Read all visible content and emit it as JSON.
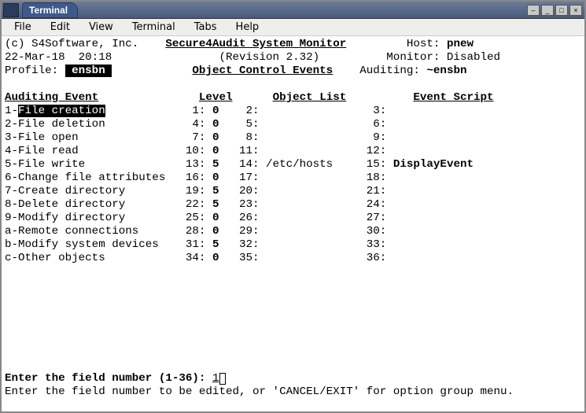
{
  "window": {
    "title": "Terminal",
    "controls": {
      "min": "_",
      "max": "□",
      "close": "×",
      "shade": "–"
    }
  },
  "menubar": [
    "File",
    "Edit",
    "View",
    "Terminal",
    "Tabs",
    "Help"
  ],
  "header": {
    "copyright": "(c) S4Software, Inc.",
    "systemTitle": "Secure4Audit System Monitor",
    "hostLabel": "Host:",
    "hostValue": "pnew",
    "date": "22-Mar-18  20:18",
    "revision": "(Revision 2.32)",
    "monitorLabel": "Monitor:",
    "monitorValue": "Disabled",
    "profileLabel": "Profile:",
    "profileValue": "ensbn",
    "sectionTitle": "Object Control Events",
    "auditingLabel": "Auditing:",
    "auditingValue": "~ensbn"
  },
  "tableHeaders": {
    "event": "Auditing Event",
    "level": "Level",
    "objectList": "Object List",
    "eventScript": "Event Script"
  },
  "events": [
    {
      "key": "1",
      "name": "File creation",
      "l": "1",
      "lv": "0",
      "o": "2",
      "ov": "",
      "s": "3",
      "sv": "",
      "sel": true
    },
    {
      "key": "2",
      "name": "File deletion",
      "l": "4",
      "lv": "0",
      "o": "5",
      "ov": "",
      "s": "6",
      "sv": ""
    },
    {
      "key": "3",
      "name": "File open",
      "l": "7",
      "lv": "0",
      "o": "8",
      "ov": "",
      "s": "9",
      "sv": ""
    },
    {
      "key": "4",
      "name": "File read",
      "l": "10",
      "lv": "0",
      "o": "11",
      "ov": "",
      "s": "12",
      "sv": ""
    },
    {
      "key": "5",
      "name": "File write",
      "l": "13",
      "lv": "5",
      "o": "14",
      "ov": "/etc/hosts",
      "s": "15",
      "sv": "DisplayEvent"
    },
    {
      "key": "6",
      "name": "Change file attributes",
      "l": "16",
      "lv": "0",
      "o": "17",
      "ov": "",
      "s": "18",
      "sv": ""
    },
    {
      "key": "7",
      "name": "Create directory",
      "l": "19",
      "lv": "5",
      "o": "20",
      "ov": "",
      "s": "21",
      "sv": ""
    },
    {
      "key": "8",
      "name": "Delete directory",
      "l": "22",
      "lv": "5",
      "o": "23",
      "ov": "",
      "s": "24",
      "sv": ""
    },
    {
      "key": "9",
      "name": "Modify directory",
      "l": "25",
      "lv": "0",
      "o": "26",
      "ov": "",
      "s": "27",
      "sv": ""
    },
    {
      "key": "a",
      "name": "Remote connections",
      "l": "28",
      "lv": "0",
      "o": "29",
      "ov": "",
      "s": "30",
      "sv": ""
    },
    {
      "key": "b",
      "name": "Modify system devices",
      "l": "31",
      "lv": "5",
      "o": "32",
      "ov": "",
      "s": "33",
      "sv": ""
    },
    {
      "key": "c",
      "name": "Other objects",
      "l": "34",
      "lv": "0",
      "o": "35",
      "ov": "",
      "s": "36",
      "sv": ""
    }
  ],
  "prompt": {
    "label": "Enter the field number (1-36): ",
    "value": "1"
  },
  "help": "Enter the field number to be edited, or 'CANCEL/EXIT' for option group menu.",
  "style": {
    "termBg": "#ffffff",
    "termFg": "#000000",
    "titlebarGradFrom": "#6a7a99",
    "titlebarGradTo": "#4a5a79",
    "menubarBg": "#eeeeec",
    "fontFamily": "Courier New",
    "fontSizePt": 14,
    "lineHeightPx": 17
  }
}
